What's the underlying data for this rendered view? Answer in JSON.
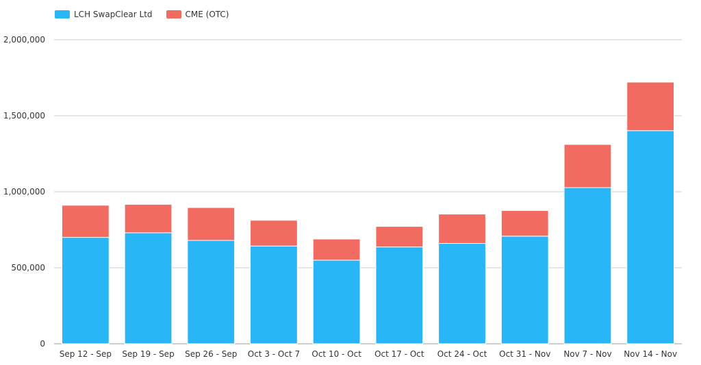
{
  "chart_data": {
    "type": "bar",
    "stacked": true,
    "categories": [
      "Sep 12 - Sep",
      "Sep 19 - Sep",
      "Sep 26 - Sep",
      "Oct 3 - Oct 7",
      "Oct 10 - Oct",
      "Oct 17 - Oct",
      "Oct 24 - Oct",
      "Oct 31 - Nov",
      "Nov 7 - Nov",
      "Nov 14 - Nov"
    ],
    "series": [
      {
        "name": "LCH SwapClear Ltd",
        "color": "#29b6f6",
        "values": [
          700000,
          730000,
          680000,
          643000,
          550000,
          637000,
          660000,
          708000,
          1027000,
          1402000
        ]
      },
      {
        "name": "CME (OTC)",
        "color": "#f26b61",
        "values": [
          211000,
          187000,
          216000,
          169000,
          139000,
          135000,
          193000,
          168000,
          284000,
          319000
        ]
      }
    ],
    "ylim": [
      0,
      2000000
    ],
    "yticks": [
      "0",
      "500,000",
      "1,000,000",
      "1,500,000",
      "2,000,000"
    ],
    "ytick_values": [
      0,
      500000,
      1000000,
      1500000,
      2000000
    ],
    "legend": "top-left",
    "grid": true
  }
}
